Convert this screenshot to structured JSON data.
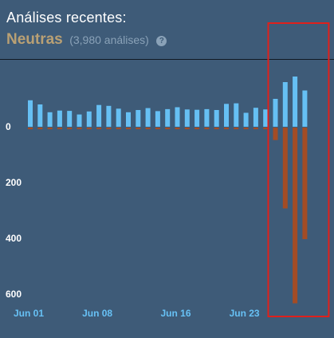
{
  "header": {
    "title": "Análises recentes:",
    "rating": "Neutras",
    "count": "(3,980 análises)",
    "help_glyph": "?"
  },
  "colors": {
    "background": "#3e5b78",
    "positive": "#66c0f4",
    "negative": "#a34c25",
    "rating": "#b9a074",
    "highlight_box": "#e0201b"
  },
  "chart_data": {
    "type": "bar",
    "y_axis_ticks": [
      "0",
      "200",
      "400",
      "600"
    ],
    "y_axis_tick_values": [
      0,
      200,
      400,
      600
    ],
    "x_axis_ticks": [
      "Jun 01",
      "Jun 08",
      "Jun 16",
      "Jun 23"
    ],
    "x_axis_tick_indices": [
      0,
      7,
      15,
      22
    ],
    "inverted_y": true,
    "series": [
      {
        "values": [
          95,
          80,
          52,
          58,
          57,
          44,
          55,
          78,
          75,
          65,
          52,
          60,
          67,
          56,
          63,
          70,
          62,
          61,
          63,
          60,
          82,
          84,
          50,
          68,
          62,
          100,
          160,
          180,
          130
        ]
      },
      {
        "values": [
          6,
          6,
          6,
          6,
          6,
          6,
          6,
          6,
          6,
          6,
          6,
          6,
          6,
          6,
          6,
          6,
          6,
          6,
          6,
          6,
          6,
          6,
          6,
          6,
          6,
          45,
          290,
          630,
          400
        ]
      }
    ],
    "ylim": [
      0,
      630
    ],
    "grid": false,
    "highlight_region": {
      "from_index": 25,
      "to_index": 28
    }
  }
}
